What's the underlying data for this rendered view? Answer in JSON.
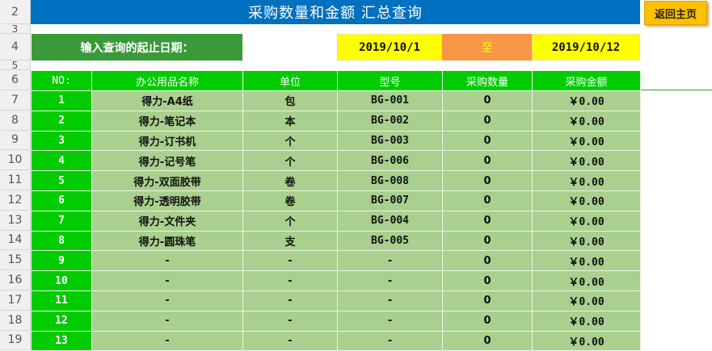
{
  "row_headers": [
    "2",
    "3",
    "4",
    "5",
    "6",
    "7",
    "8",
    "9",
    "10",
    "11",
    "12",
    "13",
    "14",
    "15",
    "16",
    "17",
    "18",
    "19"
  ],
  "title": "采购数量和金额 汇总查询",
  "back_button": "返回主页",
  "date_label": "输入查询的起止日期：",
  "start_date": "2019/10/1",
  "to_label": "至",
  "end_date": "2019/10/12",
  "columns": [
    "NO:",
    "办公用品名称",
    "单位",
    "型号",
    "采购数量",
    "采购金额"
  ],
  "rows": [
    [
      "1",
      "得力-A4纸",
      "包",
      "BG-001",
      "0",
      "￥0.00"
    ],
    [
      "2",
      "得力-笔记本",
      "本",
      "BG-002",
      "0",
      "￥0.00"
    ],
    [
      "3",
      "得力-订书机",
      "个",
      "BG-003",
      "0",
      "￥0.00"
    ],
    [
      "4",
      "得力-记号笔",
      "个",
      "BG-006",
      "0",
      "￥0.00"
    ],
    [
      "5",
      "得力-双面胶带",
      "卷",
      "BG-008",
      "0",
      "￥0.00"
    ],
    [
      "6",
      "得力-透明胶带",
      "卷",
      "BG-007",
      "0",
      "￥0.00"
    ],
    [
      "7",
      "得力-文件夹",
      "个",
      "BG-004",
      "0",
      "￥0.00"
    ],
    [
      "8",
      "得力-圆珠笔",
      "支",
      "BG-005",
      "0",
      "￥0.00"
    ],
    [
      "9",
      "-",
      "-",
      "-",
      "0",
      "￥0.00"
    ],
    [
      "10",
      "-",
      "-",
      "-",
      "0",
      "￥0.00"
    ],
    [
      "11",
      "-",
      "-",
      "-",
      "0",
      "￥0.00"
    ],
    [
      "12",
      "-",
      "-",
      "-",
      "0",
      "￥0.00"
    ],
    [
      "13",
      "-",
      "-",
      "-",
      "0",
      "￥0.00"
    ]
  ]
}
